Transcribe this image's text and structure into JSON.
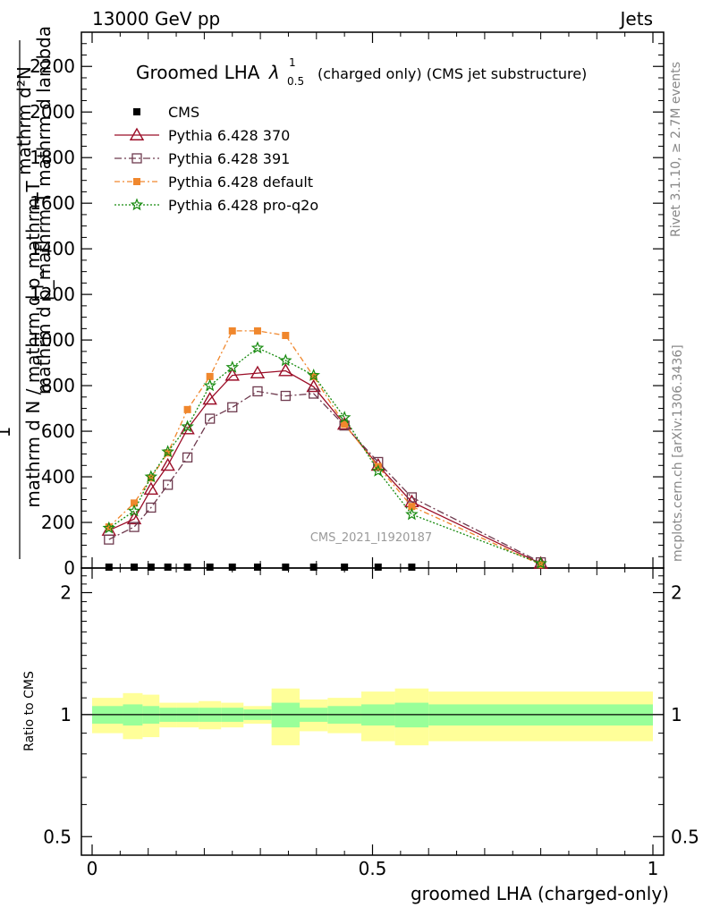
{
  "header": {
    "left": "13000 GeV pp",
    "right": "Jets"
  },
  "side_text": {
    "rivet": "Rivet 3.1.10, ≥ 2.7M events",
    "mcplots": "mcplots.cern.ch [arXiv:1306.3436]"
  },
  "watermark": "CMS_2021_I1920187",
  "colors": {
    "cms": "#000000",
    "p370": "#9b0d27",
    "p391": "#6e3a4e",
    "pdefault": "#f0872d",
    "pq2o": "#168a0e",
    "band_inner": "#99ff99",
    "band_outer": "#ffff99"
  },
  "chart_data": {
    "type": "line",
    "title_main": "Groomed LHA",
    "title_lambda": "λ",
    "title_sup": "1",
    "title_sub": "0.5",
    "title_rest": "(charged only) (CMS jet substructure)",
    "ylabel_top": "1",
    "ylabel_top_num": "mathrm d²N",
    "ylabel_top_den": "mathrm d p_mathrm T mathrm d lambda",
    "ylabel_bottom": "mathrm d N / mathrm d p_mathrm T",
    "ylabel_ratio": "Ratio to CMS",
    "xlabel": "groomed LHA (charged-only)",
    "xlim": [
      0,
      1
    ],
    "ylim": [
      0,
      2350
    ],
    "ratio_ylim": [
      0.45,
      2.3
    ],
    "x_ticks": [
      "0",
      "0.5",
      "1"
    ],
    "x_tick_values": [
      0,
      0.5,
      1
    ],
    "y_ticks": [
      "0",
      "200",
      "400",
      "600",
      "800",
      "1000",
      "1200",
      "1400",
      "1600",
      "1800",
      "2000",
      "2200"
    ],
    "y_tick_values": [
      0,
      200,
      400,
      600,
      800,
      1000,
      1200,
      1400,
      1600,
      1800,
      2000,
      2200
    ],
    "ratio_ticks": [
      "0.5",
      "1",
      "2"
    ],
    "ratio_tick_values": [
      0.5,
      1,
      2
    ],
    "x": [
      0.03,
      0.075,
      0.105,
      0.135,
      0.17,
      0.21,
      0.25,
      0.295,
      0.345,
      0.395,
      0.45,
      0.51,
      0.57,
      0.8
    ],
    "series": [
      {
        "name": "CMS",
        "key": "cms",
        "values": [
          4,
          4,
          4,
          4,
          4,
          4,
          4,
          4,
          4,
          4,
          4,
          4,
          4,
          null
        ]
      },
      {
        "name": "Pythia 6.428 370",
        "key": "p370",
        "values": [
          165,
          215,
          345,
          450,
          610,
          740,
          845,
          855,
          865,
          795,
          630,
          450,
          290,
          20
        ]
      },
      {
        "name": "Pythia 6.428 391",
        "key": "p391",
        "values": [
          125,
          180,
          265,
          365,
          485,
          655,
          705,
          775,
          755,
          765,
          625,
          465,
          310,
          25
        ]
      },
      {
        "name": "Pythia 6.428 default",
        "key": "pdefault",
        "values": [
          180,
          285,
          395,
          505,
          695,
          840,
          1040,
          1040,
          1020,
          840,
          630,
          445,
          270,
          15
        ]
      },
      {
        "name": "Pythia 6.428 pro-q2o",
        "key": "pq2o",
        "values": [
          175,
          250,
          400,
          510,
          620,
          800,
          880,
          965,
          910,
          845,
          660,
          425,
          235,
          20
        ]
      }
    ],
    "ratio_bands": {
      "edges": [
        0.0,
        0.055,
        0.09,
        0.12,
        0.15,
        0.19,
        0.23,
        0.27,
        0.32,
        0.37,
        0.42,
        0.48,
        0.54,
        0.6,
        1.0
      ],
      "inner": [
        0.05,
        0.06,
        0.05,
        0.04,
        0.04,
        0.04,
        0.04,
        0.03,
        0.07,
        0.04,
        0.05,
        0.06,
        0.07,
        0.06
      ],
      "outer": [
        0.1,
        0.13,
        0.12,
        0.07,
        0.07,
        0.08,
        0.07,
        0.05,
        0.16,
        0.09,
        0.1,
        0.14,
        0.16,
        0.14
      ]
    },
    "legend_position": "upper-left",
    "grid": false
  }
}
